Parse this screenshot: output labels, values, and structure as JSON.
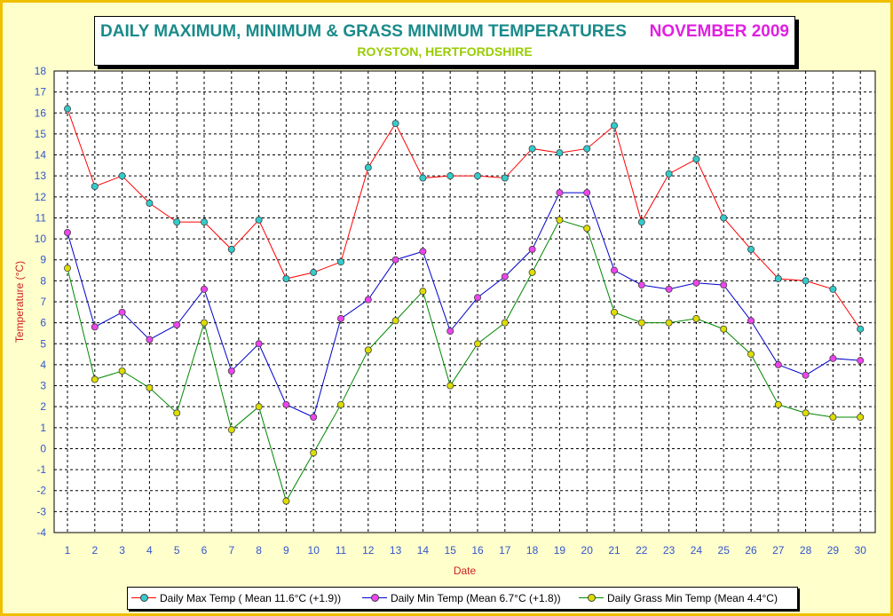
{
  "header": {
    "title": "DAILY MAXIMUM, MINIMUM & GRASS MINIMUM TEMPERATURES",
    "month": "NOVEMBER 2009",
    "location": "ROYSTON, HERTFORDSHIRE"
  },
  "colors": {
    "title": "#1a8a8a",
    "month": "#e020e0",
    "location": "#99cc00",
    "axis_text": "#3355cc",
    "axis_title": "#cc2222",
    "frame": "#f0c000",
    "background": "#ffffcc"
  },
  "chart_data": {
    "type": "line",
    "xlabel": "Date",
    "ylabel": "Temperature (°C)",
    "ylim": [
      -4,
      18
    ],
    "xlim": [
      1,
      30
    ],
    "grid": true,
    "legend_position": "bottom",
    "x": [
      1,
      2,
      3,
      4,
      5,
      6,
      7,
      8,
      9,
      10,
      11,
      12,
      13,
      14,
      15,
      16,
      17,
      18,
      19,
      20,
      21,
      22,
      23,
      24,
      25,
      26,
      27,
      28,
      29,
      30
    ],
    "series": [
      {
        "name": "Daily Max Temp ( Mean 11.6°C (+1.9))",
        "line_color": "#ff0000",
        "marker_color": "#33cccc",
        "values": [
          16.2,
          12.5,
          13.0,
          11.7,
          10.8,
          10.8,
          9.5,
          10.9,
          8.1,
          8.4,
          8.9,
          13.4,
          15.5,
          12.9,
          13.0,
          13.0,
          12.9,
          14.3,
          14.1,
          14.3,
          15.4,
          10.8,
          13.1,
          13.8,
          11.0,
          9.5,
          8.1,
          8.0,
          7.6,
          5.7
        ]
      },
      {
        "name": "Daily Min Temp (Mean 6.7°C (+1.8))",
        "line_color": "#0000cc",
        "marker_color": "#ee44ee",
        "values": [
          10.3,
          5.8,
          6.5,
          5.2,
          5.9,
          7.6,
          3.7,
          5.0,
          2.1,
          1.5,
          6.2,
          7.1,
          9.0,
          9.4,
          5.6,
          7.2,
          8.2,
          9.5,
          12.2,
          12.2,
          8.5,
          7.8,
          7.6,
          7.9,
          7.8,
          6.1,
          4.0,
          3.5,
          4.3,
          4.2
        ]
      },
      {
        "name": "Daily Grass Min Temp (Mean 4.4°C)",
        "line_color": "#008800",
        "marker_color": "#dddd00",
        "values": [
          8.6,
          3.3,
          3.7,
          2.9,
          1.7,
          6.0,
          0.9,
          2.0,
          -2.5,
          -0.2,
          2.1,
          4.7,
          6.1,
          7.5,
          3.0,
          5.0,
          6.0,
          8.4,
          10.9,
          10.5,
          6.5,
          6.0,
          6.0,
          6.2,
          5.7,
          4.5,
          2.1,
          1.7,
          1.5,
          1.5
        ]
      }
    ]
  }
}
